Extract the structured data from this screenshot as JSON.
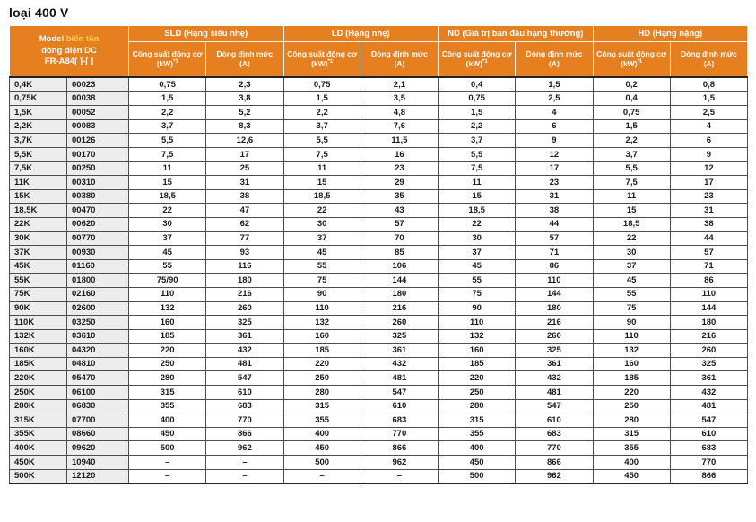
{
  "title": "loại 400 V",
  "colors": {
    "header_orange": "#E67F20",
    "header_text": "#FFFFFF",
    "header_highlight_yellow": "#FFD54A",
    "model_column_bg": "#EDEDED",
    "body_text": "#1A1A1A"
  },
  "table": {
    "model_header": {
      "prefix": "Model ",
      "highlight": "biến tần",
      "line2": "dòng điện DC",
      "line3": "FR-A84[ ]-[ ]"
    },
    "groups": [
      {
        "label": "SLD (Hạng siêu nhẹ)"
      },
      {
        "label": "LD (Hạng nhẹ)"
      },
      {
        "label": "ND (Giá trị ban đầu hạng thường)"
      },
      {
        "label": "HD (Hạng nặng)"
      }
    ],
    "subheaders": {
      "power_line1": "Công suất động cơ",
      "power_unit": "(kW)",
      "power_sup": "*1",
      "current_line1": "Dòng định mức",
      "current_line2": "(A)"
    },
    "column_keys": [
      "model",
      "code",
      "sld_kw",
      "sld_a",
      "ld_kw",
      "ld_a",
      "nd_kw",
      "nd_a",
      "hd_kw",
      "hd_a"
    ],
    "rows": [
      [
        "0,4K",
        "00023",
        "0,75",
        "2,3",
        "0,75",
        "2,1",
        "0,4",
        "1,5",
        "0,2",
        "0,8"
      ],
      [
        "0,75K",
        "00038",
        "1,5",
        "3,8",
        "1,5",
        "3,5",
        "0,75",
        "2,5",
        "0,4",
        "1,5"
      ],
      [
        "1,5K",
        "00052",
        "2,2",
        "5,2",
        "2,2",
        "4,8",
        "1,5",
        "4",
        "0,75",
        "2,5"
      ],
      [
        "2,2K",
        "00083",
        "3,7",
        "8,3",
        "3,7",
        "7,6",
        "2,2",
        "6",
        "1,5",
        "4"
      ],
      [
        "3,7K",
        "00126",
        "5,5",
        "12,6",
        "5,5",
        "11,5",
        "3,7",
        "9",
        "2,2",
        "6"
      ],
      [
        "5,5K",
        "00170",
        "7,5",
        "17",
        "7,5",
        "16",
        "5,5",
        "12",
        "3,7",
        "9"
      ],
      [
        "7,5K",
        "00250",
        "11",
        "25",
        "11",
        "23",
        "7,5",
        "17",
        "5,5",
        "12"
      ],
      [
        "11K",
        "00310",
        "15",
        "31",
        "15",
        "29",
        "11",
        "23",
        "7,5",
        "17"
      ],
      [
        "15K",
        "00380",
        "18,5",
        "38",
        "18,5",
        "35",
        "15",
        "31",
        "11",
        "23"
      ],
      [
        "18,5K",
        "00470",
        "22",
        "47",
        "22",
        "43",
        "18,5",
        "38",
        "15",
        "31"
      ],
      [
        "22K",
        "00620",
        "30",
        "62",
        "30",
        "57",
        "22",
        "44",
        "18,5",
        "38"
      ],
      [
        "30K",
        "00770",
        "37",
        "77",
        "37",
        "70",
        "30",
        "57",
        "22",
        "44"
      ],
      [
        "37K",
        "00930",
        "45",
        "93",
        "45",
        "85",
        "37",
        "71",
        "30",
        "57"
      ],
      [
        "45K",
        "01160",
        "55",
        "116",
        "55",
        "106",
        "45",
        "86",
        "37",
        "71"
      ],
      [
        "55K",
        "01800",
        "75/90",
        "180",
        "75",
        "144",
        "55",
        "110",
        "45",
        "86"
      ],
      [
        "75K",
        "02160",
        "110",
        "216",
        "90",
        "180",
        "75",
        "144",
        "55",
        "110"
      ],
      [
        "90K",
        "02600",
        "132",
        "260",
        "110",
        "216",
        "90",
        "180",
        "75",
        "144"
      ],
      [
        "110K",
        "03250",
        "160",
        "325",
        "132",
        "260",
        "110",
        "216",
        "90",
        "180"
      ],
      [
        "132K",
        "03610",
        "185",
        "361",
        "160",
        "325",
        "132",
        "260",
        "110",
        "216"
      ],
      [
        "160K",
        "04320",
        "220",
        "432",
        "185",
        "361",
        "160",
        "325",
        "132",
        "260"
      ],
      [
        "185K",
        "04810",
        "250",
        "481",
        "220",
        "432",
        "185",
        "361",
        "160",
        "325"
      ],
      [
        "220K",
        "05470",
        "280",
        "547",
        "250",
        "481",
        "220",
        "432",
        "185",
        "361"
      ],
      [
        "250K",
        "06100",
        "315",
        "610",
        "280",
        "547",
        "250",
        "481",
        "220",
        "432"
      ],
      [
        "280K",
        "06830",
        "355",
        "683",
        "315",
        "610",
        "280",
        "547",
        "250",
        "481"
      ],
      [
        "315K",
        "07700",
        "400",
        "770",
        "355",
        "683",
        "315",
        "610",
        "280",
        "547"
      ],
      [
        "355K",
        "08660",
        "450",
        "866",
        "400",
        "770",
        "355",
        "683",
        "315",
        "610"
      ],
      [
        "400K",
        "09620",
        "500",
        "962",
        "450",
        "866",
        "400",
        "770",
        "355",
        "683"
      ],
      [
        "450K",
        "10940",
        "–",
        "–",
        "500",
        "962",
        "450",
        "866",
        "400",
        "770"
      ],
      [
        "500K",
        "12120",
        "–",
        "–",
        "–",
        "–",
        "500",
        "962",
        "450",
        "866"
      ]
    ]
  }
}
